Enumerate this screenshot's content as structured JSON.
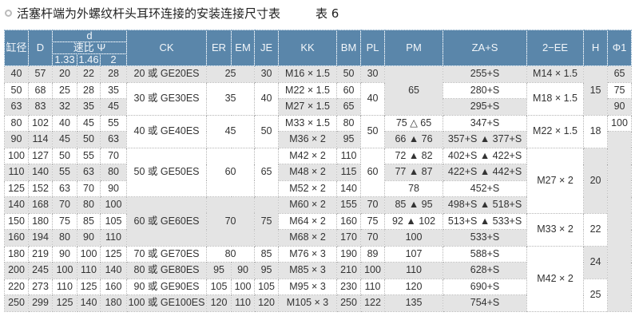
{
  "title": {
    "text": "活塞杆端为外螺纹杆头耳环连接的安装连接尺寸表",
    "table_no": "表 6",
    "icon": "circle-bullet-icon"
  },
  "colors": {
    "header": "#5a86aa",
    "shade": "#e4e4e4"
  },
  "header": {
    "bore": "缸径",
    "D": "D",
    "d": "d",
    "ratio": "速比 Ψ",
    "ratios": [
      "1.33",
      "1.46",
      "2"
    ],
    "cols": [
      "CK",
      "ER",
      "EM",
      "JE",
      "KK",
      "BM",
      "PL",
      "PM",
      "ZA+S",
      "2−EE",
      "H",
      "Φ1"
    ]
  },
  "rows": [
    [
      {
        "t": "40"
      },
      {
        "t": "57"
      },
      {
        "t": "20"
      },
      {
        "t": "22"
      },
      {
        "t": "28"
      },
      {
        "t": "20 或 GE20ES"
      },
      {
        "t": "25",
        "cs": 2
      },
      {
        "t": "30"
      },
      {
        "t": "M16 × 1.5"
      },
      {
        "t": "50"
      },
      {
        "t": "30"
      },
      {
        "t": "65",
        "rs": 3,
        "shade": true
      },
      {
        "t": "255+S"
      },
      {
        "t": "M14 × 1.5"
      },
      {
        "t": "15",
        "rs": 3,
        "shade": true
      },
      {
        "t": "65"
      }
    ],
    [
      {
        "t": "50"
      },
      {
        "t": "68"
      },
      {
        "t": "25"
      },
      {
        "t": "28"
      },
      {
        "t": "35"
      },
      {
        "t": "30 或 GE30ES",
        "rs": 2,
        "shade": false
      },
      {
        "t": "35",
        "cs": 2,
        "rs": 2,
        "shade": false
      },
      {
        "t": "40",
        "rs": 2,
        "shade": false
      },
      {
        "t": "M22 × 1.5"
      },
      {
        "t": "60"
      },
      {
        "t": "40",
        "rs": 2,
        "shade": false
      },
      {
        "t": "280+S"
      },
      {
        "t": "M18 × 1.5",
        "rs": 2,
        "shade": false
      },
      {
        "t": "75"
      }
    ],
    [
      {
        "t": "63"
      },
      {
        "t": "83"
      },
      {
        "t": "32"
      },
      {
        "t": "35"
      },
      {
        "t": "45"
      },
      {
        "t": "M27 × 1.5"
      },
      {
        "t": "65"
      },
      {
        "t": "295+S"
      },
      {
        "t": "90"
      }
    ],
    [
      {
        "t": "80"
      },
      {
        "t": "102"
      },
      {
        "t": "40"
      },
      {
        "t": "45"
      },
      {
        "t": "55"
      },
      {
        "t": "40 或 GE40ES",
        "rs": 2,
        "shade": false
      },
      {
        "t": "45",
        "cs": 2,
        "rs": 2,
        "shade": false
      },
      {
        "t": "50",
        "rs": 2,
        "shade": false
      },
      {
        "t": "M33 × 1.5"
      },
      {
        "t": "80"
      },
      {
        "t": "50",
        "rs": 2,
        "shade": false
      },
      {
        "t": "75  △ 65"
      },
      {
        "t": "347+S"
      },
      {
        "t": "M22 × 1.5",
        "rs": 2,
        "shade": false
      },
      {
        "t": "18",
        "rs": 2,
        "shade": false
      },
      {
        "t": "100"
      }
    ],
    [
      {
        "t": "90"
      },
      {
        "t": "114"
      },
      {
        "t": "45"
      },
      {
        "t": "50"
      },
      {
        "t": "63"
      },
      {
        "t": "M36 × 2"
      },
      {
        "t": "95"
      },
      {
        "t": "66  ▲ 76"
      },
      {
        "t": "357+S ▲ 377+S"
      },
      {
        "t": "",
        "rs": 11,
        "shade": true
      }
    ],
    [
      {
        "t": "100"
      },
      {
        "t": "127"
      },
      {
        "t": "50"
      },
      {
        "t": "55"
      },
      {
        "t": "70"
      },
      {
        "t": "50 或 GE50ES",
        "rs": 3,
        "shade": false
      },
      {
        "t": "60",
        "cs": 2,
        "rs": 3,
        "shade": false
      },
      {
        "t": "65",
        "rs": 3,
        "shade": false
      },
      {
        "t": "M42 × 2"
      },
      {
        "t": "110"
      },
      {
        "t": "60",
        "rs": 3,
        "shade": false
      },
      {
        "t": "72  ▲ 82"
      },
      {
        "t": "402+S ▲ 422+S"
      },
      {
        "t": "M27 × 2",
        "rs": 4,
        "shade": false
      },
      {
        "t": "20",
        "rs": 4,
        "shade": true
      }
    ],
    [
      {
        "t": "110"
      },
      {
        "t": "140"
      },
      {
        "t": "55"
      },
      {
        "t": "63"
      },
      {
        "t": "80"
      },
      {
        "t": "M48 × 2"
      },
      {
        "t": "115"
      },
      {
        "t": "77  ▲ 87"
      },
      {
        "t": "422+S ▲ 442+S"
      }
    ],
    [
      {
        "t": "125"
      },
      {
        "t": "152"
      },
      {
        "t": "63"
      },
      {
        "t": "70"
      },
      {
        "t": "90"
      },
      {
        "t": "M52 × 2"
      },
      {
        "t": "140"
      },
      {
        "t": "78"
      },
      {
        "t": "452+S"
      }
    ],
    [
      {
        "t": "140"
      },
      {
        "t": "168"
      },
      {
        "t": "70"
      },
      {
        "t": "80"
      },
      {
        "t": "100"
      },
      {
        "t": "60 或 GE60ES",
        "rs": 3,
        "shade": true
      },
      {
        "t": "70",
        "cs": 2,
        "rs": 3,
        "shade": true
      },
      {
        "t": "75",
        "rs": 3,
        "shade": true
      },
      {
        "t": "M60 × 2"
      },
      {
        "t": "155"
      },
      {
        "t": "70"
      },
      {
        "t": "85  ▲ 95"
      },
      {
        "t": "498+S ▲ 518+S"
      }
    ],
    [
      {
        "t": "150"
      },
      {
        "t": "180"
      },
      {
        "t": "75"
      },
      {
        "t": "85"
      },
      {
        "t": "105"
      },
      {
        "t": "M64 × 2"
      },
      {
        "t": "160"
      },
      {
        "t": "75"
      },
      {
        "t": "92  ▲ 102"
      },
      {
        "t": "513+S ▲ 533+S"
      },
      {
        "t": "M33 × 2",
        "rs": 2,
        "shade": false
      },
      {
        "t": "22",
        "rs": 2,
        "shade": false
      }
    ],
    [
      {
        "t": "160"
      },
      {
        "t": "194"
      },
      {
        "t": "80"
      },
      {
        "t": "90"
      },
      {
        "t": "110"
      },
      {
        "t": "M68 × 2"
      },
      {
        "t": "170"
      },
      {
        "t": "70"
      },
      {
        "t": "100"
      },
      {
        "t": "533+S"
      }
    ],
    [
      {
        "t": "180"
      },
      {
        "t": "219"
      },
      {
        "t": "90"
      },
      {
        "t": "100"
      },
      {
        "t": "125"
      },
      {
        "t": "70 或 GE70ES"
      },
      {
        "t": "80",
        "cs": 2
      },
      {
        "t": "85"
      },
      {
        "t": "M76 × 3"
      },
      {
        "t": "190"
      },
      {
        "t": "89"
      },
      {
        "t": "107"
      },
      {
        "t": "588+S"
      },
      {
        "t": "M42 × 2",
        "rs": 4,
        "shade": false
      },
      {
        "t": "24",
        "rs": 2,
        "shade": true
      }
    ],
    [
      {
        "t": "200"
      },
      {
        "t": "245"
      },
      {
        "t": "100"
      },
      {
        "t": "110"
      },
      {
        "t": "140"
      },
      {
        "t": "80 或 GE80ES"
      },
      {
        "t": "95"
      },
      {
        "t": "90"
      },
      {
        "t": "95"
      },
      {
        "t": "M85 × 3"
      },
      {
        "t": "210"
      },
      {
        "t": "100"
      },
      {
        "t": "110"
      },
      {
        "t": "628+S"
      }
    ],
    [
      {
        "t": "220"
      },
      {
        "t": "273"
      },
      {
        "t": "110"
      },
      {
        "t": "125"
      },
      {
        "t": "160"
      },
      {
        "t": "90 或 GE90ES"
      },
      {
        "t": "105"
      },
      {
        "t": "100"
      },
      {
        "t": "105"
      },
      {
        "t": "M95 × 3"
      },
      {
        "t": "230"
      },
      {
        "t": "110"
      },
      {
        "t": "120"
      },
      {
        "t": "690+S"
      },
      {
        "t": "25",
        "rs": 2,
        "shade": false
      }
    ],
    [
      {
        "t": "250"
      },
      {
        "t": "299"
      },
      {
        "t": "125"
      },
      {
        "t": "140"
      },
      {
        "t": "180"
      },
      {
        "t": "100 或 GE100ES"
      },
      {
        "t": "120"
      },
      {
        "t": "110"
      },
      {
        "t": "120"
      },
      {
        "t": "M105 × 3"
      },
      {
        "t": "250"
      },
      {
        "t": "122"
      },
      {
        "t": "135"
      },
      {
        "t": "754+S"
      }
    ]
  ]
}
